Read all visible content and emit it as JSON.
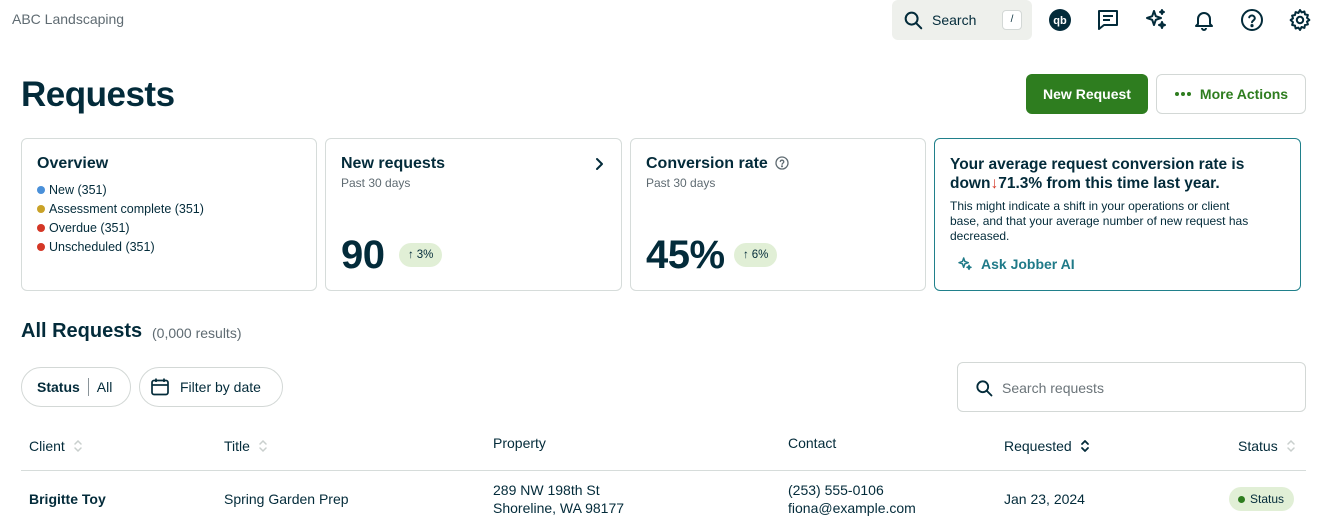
{
  "header": {
    "company": "ABC Landscaping",
    "search_label": "Search",
    "search_shortcut": "/"
  },
  "page": {
    "title": "Requests",
    "new_request_label": "New Request",
    "more_actions_label": "More Actions"
  },
  "overview": {
    "title": "Overview",
    "items": [
      {
        "label": "New (351)",
        "color": "#4a90d9"
      },
      {
        "label": "Assessment complete (351)",
        "color": "#c9a227"
      },
      {
        "label": "Overdue (351)",
        "color": "#d43726"
      },
      {
        "label": "Unscheduled (351)",
        "color": "#d43726"
      }
    ]
  },
  "new_requests": {
    "title": "New requests",
    "subtitle": "Past 30 days",
    "value": "90",
    "trend": "3%"
  },
  "conversion": {
    "title": "Conversion rate",
    "subtitle": "Past 30 days",
    "value": "45%",
    "trend": "6%"
  },
  "insight": {
    "title_prefix": "Your average request conversion rate is down",
    "title_value": "71.3%",
    "title_suffix": " from this time last year.",
    "body": "This might indicate a shift in your operations or client base, and that your average number of new request has decreased.",
    "link_label": "Ask Jobber AI"
  },
  "list": {
    "title": "All Requests",
    "count": "(0,000 results)",
    "filter_status_label": "Status",
    "filter_status_value": "All",
    "filter_date_label": "Filter by date",
    "search_placeholder": "Search requests",
    "columns": [
      "Client",
      "Title",
      "Property",
      "Contact",
      "Requested",
      "Status"
    ],
    "rows": [
      {
        "client": "Brigitte Toy",
        "title": "Spring Garden Prep",
        "property_line1": "289 NW 198th St",
        "property_line2": "Shoreline, WA 98177",
        "contact_phone": "(253) 555-0106",
        "contact_email": "fiona@example.com",
        "requested": "Jan 23, 2024",
        "status": "Status"
      }
    ]
  },
  "colors": {
    "primary_green": "#2e7d1f",
    "ink": "#032b3a",
    "trend_bg": "#e1efd6",
    "ai_accent": "#1f7a88",
    "down_red": "#d43726"
  }
}
